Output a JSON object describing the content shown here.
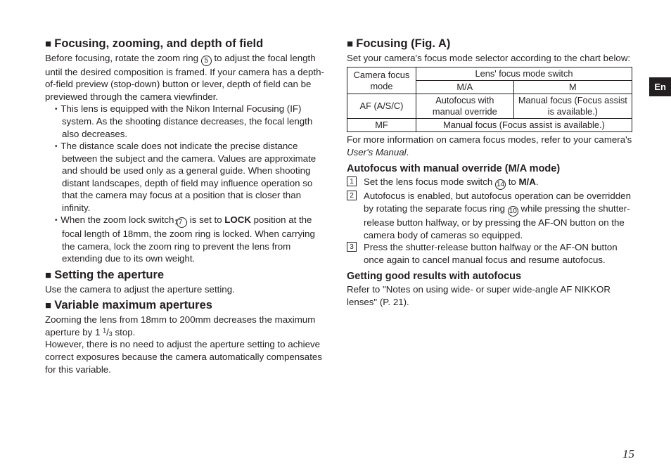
{
  "langTab": "En",
  "pageNumber": "15",
  "left": {
    "h_focus": "Focusing, zooming, and depth of field",
    "p_focus_intro_a": "Before focusing, rotate the zoom ring ",
    "p_focus_intro_b": " to adjust the focal length until the desired composition is framed. If your camera has a depth-of-field preview (stop-down) button or lever, depth of field can be previewed through the camera viewfinder.",
    "circ5": "5",
    "bullet1": "This lens is equipped with the Nikon Internal Focusing (IF) system. As the shooting distance decreases, the focal length also decreases.",
    "bullet2": "The distance scale does not indicate the precise distance between the subject and the camera. Values are approximate and should be used only as a general guide. When shooting distant landscapes, depth of field may influence operation so that the camera may focus at a position that is closer than infinity.",
    "bullet3a": "When the zoom lock switch ",
    "circ17": "17",
    "bullet3b": " is set to ",
    "lock": "LOCK",
    "bullet3c": " position at the focal length of 18mm, the zoom ring is locked. When carrying the camera, lock the zoom ring to prevent the lens from extending due to its own weight.",
    "h_aperture": "Setting the aperture",
    "p_aperture": "Use the camera to adjust the aperture setting.",
    "h_varmax": "Variable maximum apertures",
    "p_varmax1a": "Zooming the lens from 18mm to 200mm decreases the maximum aperture by 1 ",
    "frac_sup": "1",
    "frac_sub": "3",
    "p_varmax1b": " stop.",
    "p_varmax2": "However, there is no need to adjust the aperture setting to achieve correct exposures because the camera automatically compensates for this variable."
  },
  "right": {
    "h_focusA": "Focusing (Fig. A)",
    "p_focusA": "Set your camera's focus mode selector according to the chart below:",
    "table": {
      "th_camera": "Camera focus mode",
      "th_lens": "Lens' focus mode switch",
      "th_ma": "M/A",
      "th_m": "M",
      "row_af": "AF (A/S/C)",
      "row_af_ma": "Autofocus with manual override",
      "row_af_m": "Manual focus (Focus assist is available.)",
      "row_mf": "MF",
      "row_mf_merged": "Manual focus (Focus assist is available.)"
    },
    "p_moreinfo_a": "For more information on camera focus modes, refer to your camera's ",
    "p_moreinfo_em": "User's Manual",
    "p_moreinfo_b": ".",
    "h_autofocus": "Autofocus with manual override (M/A mode)",
    "step1_a": "Set the lens focus mode switch ",
    "circ14": "14",
    "step1_b": " to ",
    "step1_ma": "M/A",
    "step1_c": ".",
    "step2_a": "Autofocus is enabled, but autofocus operation can be overridden by rotating the separate focus ring ",
    "circ10": "10",
    "step2_b": " while pressing the shutter-release button halfway, or by pressing the AF-ON button on the camera body of cameras so equipped.",
    "step3": "Press the shutter-release button halfway or the AF-ON button once again to cancel manual focus and resume autofocus.",
    "h_goodresults": "Getting good results with autofocus",
    "p_goodresults": "Refer to \"Notes on using wide- or super wide-angle AF NIKKOR lenses\" (P. 21)."
  }
}
